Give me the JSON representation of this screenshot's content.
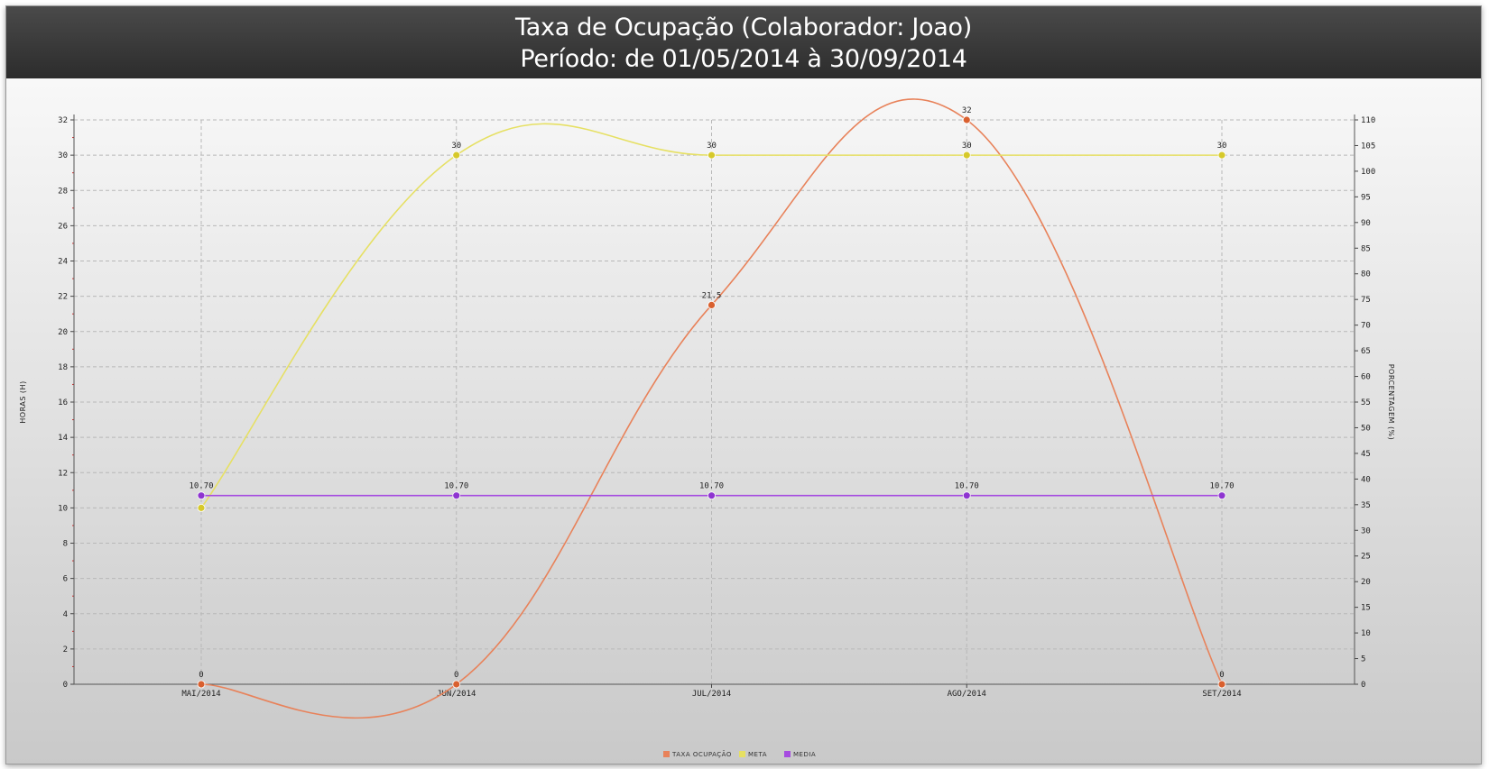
{
  "header": {
    "title": "Taxa de Ocupação (Colaborador: Joao)",
    "subtitle": "Período: de 01/05/2014 à 30/09/2014"
  },
  "chart_data": {
    "type": "line",
    "categories": [
      "MAI/2014",
      "JUN/2014",
      "JUL/2014",
      "AGO/2014",
      "SET/2014"
    ],
    "series": [
      {
        "name": "TAXA OCUPAÇÃO",
        "values": [
          0,
          0,
          21.5,
          32,
          0
        ],
        "labels": [
          "0",
          "0",
          "21.5",
          "32",
          "0"
        ],
        "color": "#e8825a",
        "marker": "#d9602f",
        "axis": "left"
      },
      {
        "name": "META",
        "values": [
          10,
          30,
          30,
          30,
          30
        ],
        "labels": [
          "",
          "30",
          "30",
          "30",
          "30"
        ],
        "color": "#e6e063",
        "marker": "#d6c92a",
        "axis": "left"
      },
      {
        "name": "MEDIA",
        "values": [
          10.7,
          10.7,
          10.7,
          10.7,
          10.7
        ],
        "labels": [
          "10.70",
          "10.70",
          "10.70",
          "10.70",
          "10.70"
        ],
        "color": "#a64ce0",
        "marker": "#8e34d0",
        "axis": "left"
      }
    ],
    "y_left": {
      "label": "HORAS (H)",
      "min": 0,
      "max": 32,
      "ticks": [
        0,
        2,
        4,
        6,
        8,
        10,
        12,
        14,
        16,
        18,
        20,
        22,
        24,
        26,
        28,
        30,
        32
      ]
    },
    "y_right": {
      "label": "PORCENTAGEM (%)",
      "min": 0,
      "max": 110,
      "ticks": [
        0,
        5,
        10,
        15,
        20,
        25,
        30,
        35,
        40,
        45,
        50,
        55,
        60,
        65,
        70,
        75,
        80,
        85,
        90,
        95,
        100,
        105,
        110
      ]
    },
    "grid": true,
    "legend_position": "bottom-center"
  }
}
